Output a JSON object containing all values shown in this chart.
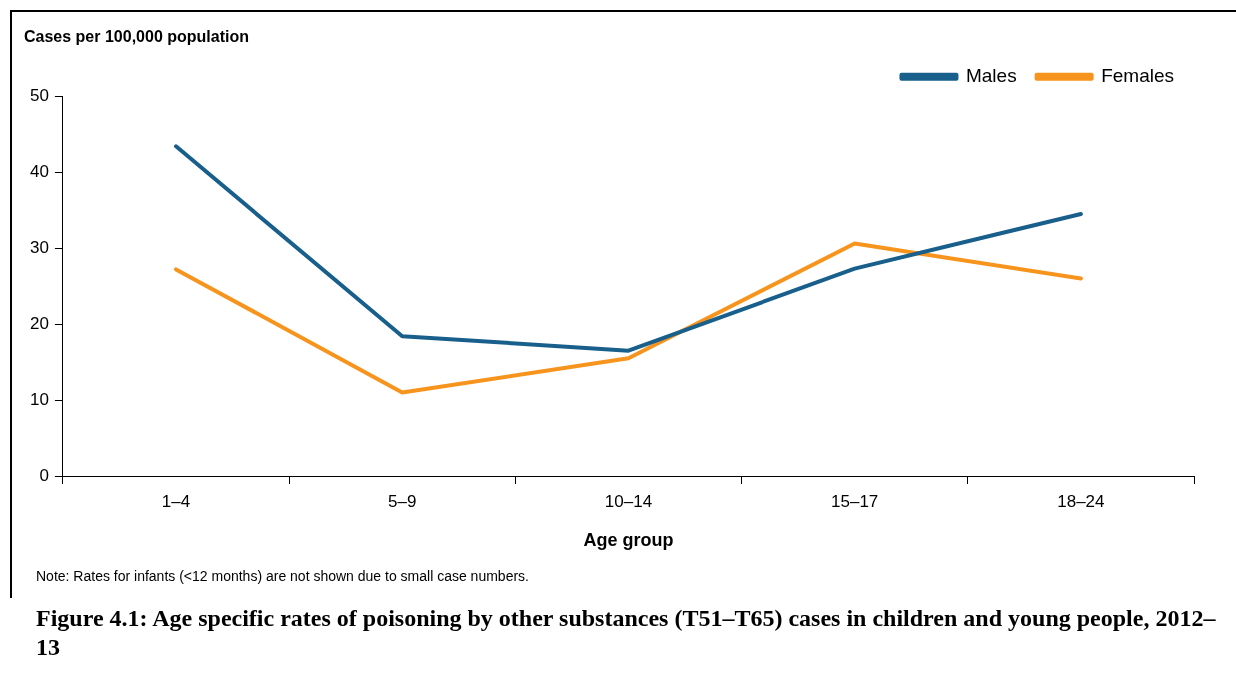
{
  "chart_data": {
    "type": "line",
    "title": "Figure 4.1: Age specific rates of poisoning by other substances (T51–T65) cases in children and young people, 2012–13",
    "ylabel": "Cases per 100,000 population",
    "xlabel": "Age group",
    "categories": [
      "1–4",
      "5–9",
      "10–14",
      "15–17",
      "18–24"
    ],
    "series": [
      {
        "name": "Males",
        "color": "#185f8c",
        "values": [
          43.4,
          18.4,
          16.5,
          27.3,
          34.5
        ]
      },
      {
        "name": "Females",
        "color": "#f7941d",
        "values": [
          27.2,
          11.0,
          15.5,
          30.6,
          26.0
        ]
      }
    ],
    "ylim": [
      0,
      50
    ],
    "yticks": [
      0,
      10,
      20,
      30,
      40,
      50
    ],
    "grid": false,
    "legend": "top right",
    "marker": "none",
    "line_style": "solid",
    "annotations": [
      "Note: Rates for infants (<12 months) are not shown due to small case numbers."
    ]
  }
}
